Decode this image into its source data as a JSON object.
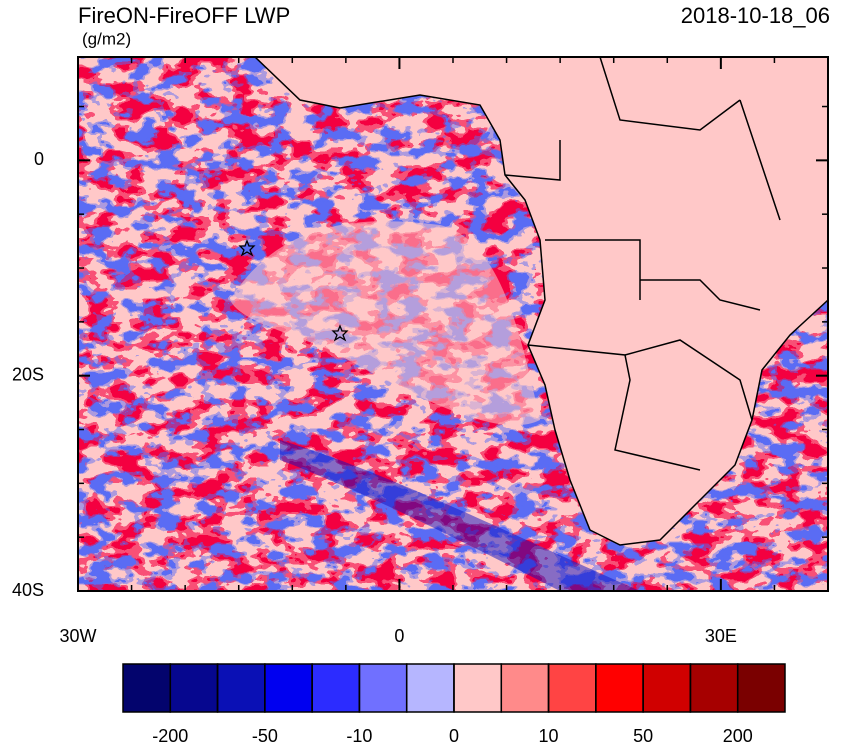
{
  "map": {
    "title": "FireON-FireOFF LWP",
    "units": "(g/m2)",
    "time": "2018-10-18_06",
    "xlim": [
      -30,
      40
    ],
    "ylim": [
      -40,
      9.6
    ],
    "xticks": [
      {
        "value": -30,
        "label": "30W"
      },
      {
        "value": 0,
        "label": "0"
      },
      {
        "value": 30,
        "label": "30E"
      }
    ],
    "yticks": [
      {
        "value": 0,
        "label": "0"
      },
      {
        "value": -20,
        "label": "20S"
      },
      {
        "value": -40,
        "label": "40S"
      }
    ],
    "xminor": [
      -25,
      -20,
      -15,
      -10,
      -5,
      5,
      10,
      15,
      20,
      25,
      35,
      40
    ],
    "yminor": [
      5,
      -5,
      -10,
      -15,
      -25,
      -30,
      -35
    ],
    "colorbar": {
      "colors": [
        "#03046d",
        "#06078f",
        "#0a10b5",
        "#0000f0",
        "#2c2cff",
        "#7070ff",
        "#b6b6ff",
        "#ffc8c8",
        "#ff8a8a",
        "#ff4444",
        "#ff0000",
        "#d00000",
        "#a60000",
        "#7a0000"
      ],
      "levels": [
        -200,
        -100,
        -50,
        -20,
        -10,
        -5,
        0,
        5,
        10,
        20,
        50,
        100,
        200
      ],
      "label_stride": 2
    }
  }
}
